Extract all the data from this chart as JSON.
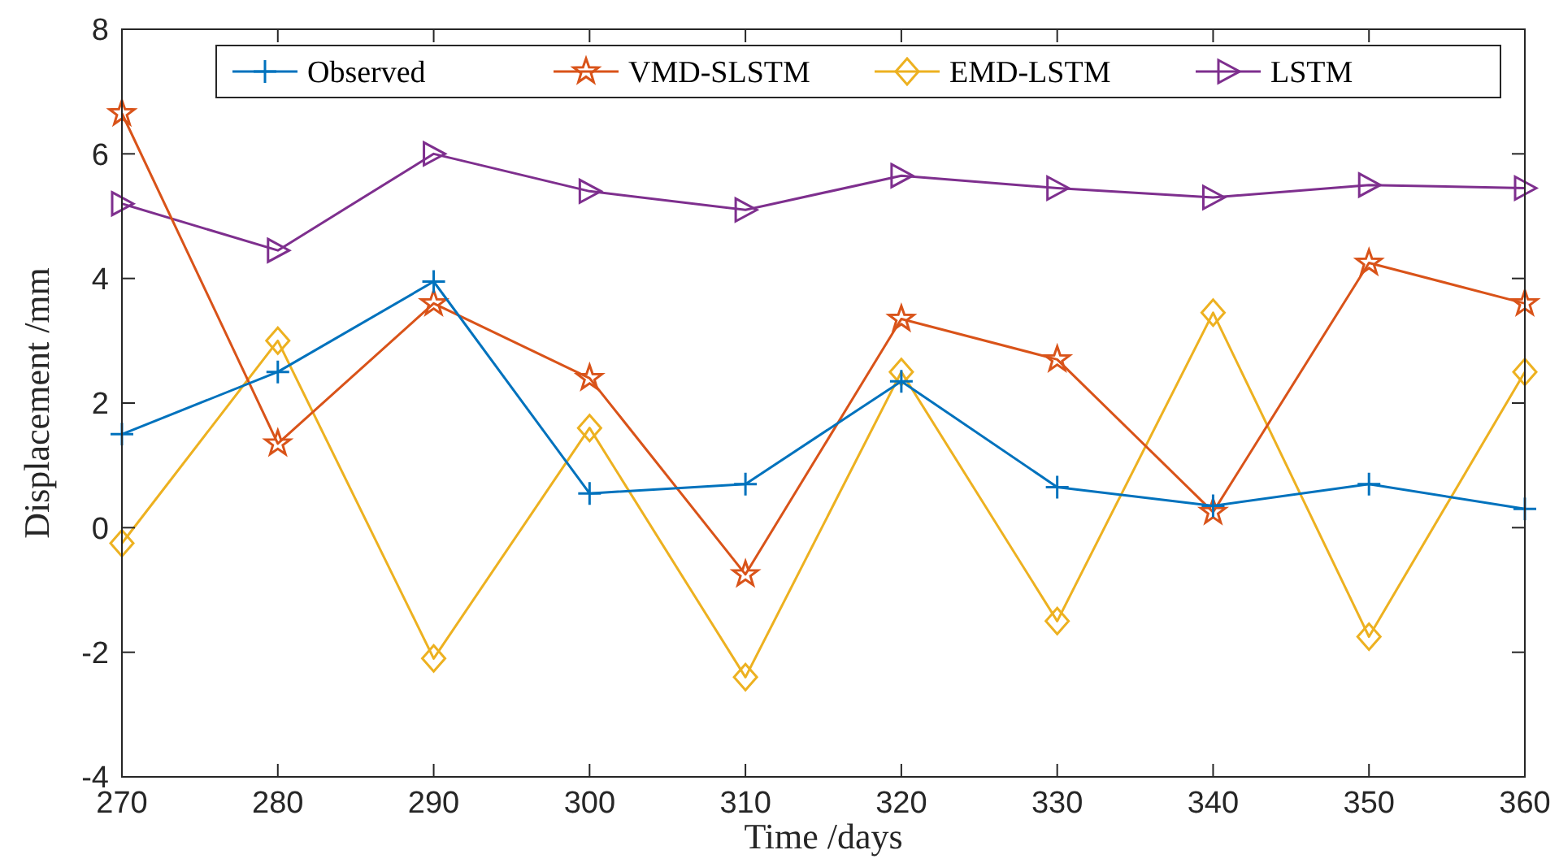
{
  "chart_data": {
    "type": "line",
    "xlabel": "Time /days",
    "ylabel": "Displacement /mm",
    "x": [
      270,
      280,
      290,
      300,
      310,
      320,
      330,
      340,
      350,
      360
    ],
    "xlim": [
      270,
      360
    ],
    "xticks": [
      270,
      280,
      290,
      300,
      310,
      320,
      330,
      340,
      350,
      360
    ],
    "ylim": [
      -4,
      8
    ],
    "yticks": [
      -4,
      -2,
      0,
      2,
      4,
      6,
      8
    ],
    "grid": false,
    "legend": "top right",
    "series": [
      {
        "name": "Observed",
        "color": "#0072bd",
        "marker": "cross",
        "values": [
          1.5,
          2.5,
          3.95,
          0.55,
          0.7,
          2.35,
          0.65,
          0.35,
          0.7,
          0.3
        ]
      },
      {
        "name": "VMD-SLSTM",
        "color": "#d95319",
        "marker": "star",
        "values": [
          6.65,
          1.35,
          3.6,
          2.4,
          -0.75,
          3.35,
          2.7,
          0.25,
          4.25,
          3.6
        ]
      },
      {
        "name": "EMD-LSTM",
        "color": "#edb120",
        "marker": "diamond",
        "values": [
          -0.25,
          3.0,
          -2.1,
          1.6,
          -2.4,
          2.5,
          -1.5,
          3.45,
          -1.75,
          2.5
        ]
      },
      {
        "name": "LSTM",
        "color": "#7e2f8e",
        "marker": "triangle",
        "values": [
          5.2,
          4.45,
          6.0,
          5.4,
          5.1,
          5.65,
          5.45,
          5.3,
          5.5,
          5.45
        ]
      }
    ]
  }
}
